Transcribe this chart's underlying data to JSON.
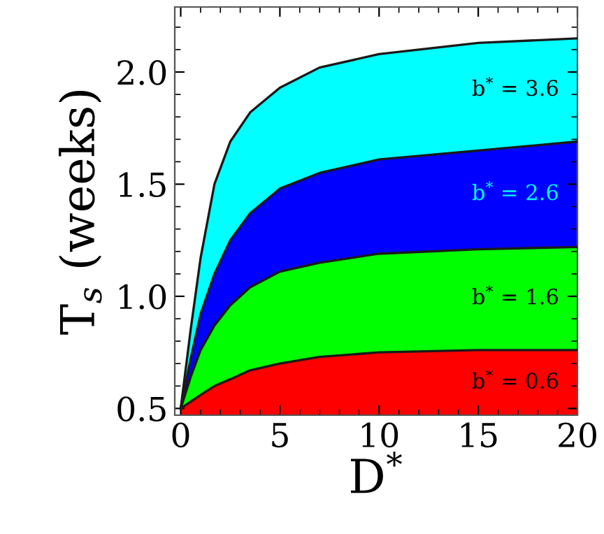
{
  "chart_data": {
    "type": "area",
    "xlabel": "D$^{*}$",
    "ylabel": "T$_{s}$ (weeks)",
    "x": [
      0,
      0.5,
      1,
      1.7,
      2.5,
      3.5,
      5,
      7,
      10,
      15,
      20
    ],
    "series": [
      {
        "name": "b$^{*}$ = 3.6",
        "color": "#00ffff",
        "values": [
          0.5,
          0.85,
          1.17,
          1.5,
          1.69,
          1.82,
          1.93,
          2.02,
          2.08,
          2.13,
          2.15
        ]
      },
      {
        "name": "b$^{*}$ = 2.6",
        "color": "#0000ff",
        "values": [
          0.5,
          0.72,
          0.92,
          1.1,
          1.25,
          1.37,
          1.48,
          1.55,
          1.61,
          1.65,
          1.69
        ]
      },
      {
        "name": "b$^{*}$ = 1.6",
        "color": "#00ff00",
        "values": [
          0.5,
          0.64,
          0.76,
          0.87,
          0.96,
          1.04,
          1.11,
          1.15,
          1.19,
          1.21,
          1.22
        ]
      },
      {
        "name": "b$^{*}$ = 0.6",
        "color": "#ff0000",
        "values": [
          0.5,
          0.53,
          0.56,
          0.6,
          0.63,
          0.67,
          0.7,
          0.73,
          0.75,
          0.76,
          0.76
        ]
      }
    ],
    "xlim": [
      -0.3,
      20
    ],
    "ylim": [
      0.47,
      2.29
    ],
    "xticks": [
      0,
      5,
      10,
      15,
      20
    ],
    "yticks": [
      {
        "value": 0.5,
        "label": "0.5"
      },
      {
        "value": 1.0,
        "label": "1.0"
      },
      {
        "value": 1.5,
        "label": "1.5"
      },
      {
        "value": 2.0,
        "label": "2.0"
      }
    ],
    "grid": false,
    "legend": false
  }
}
